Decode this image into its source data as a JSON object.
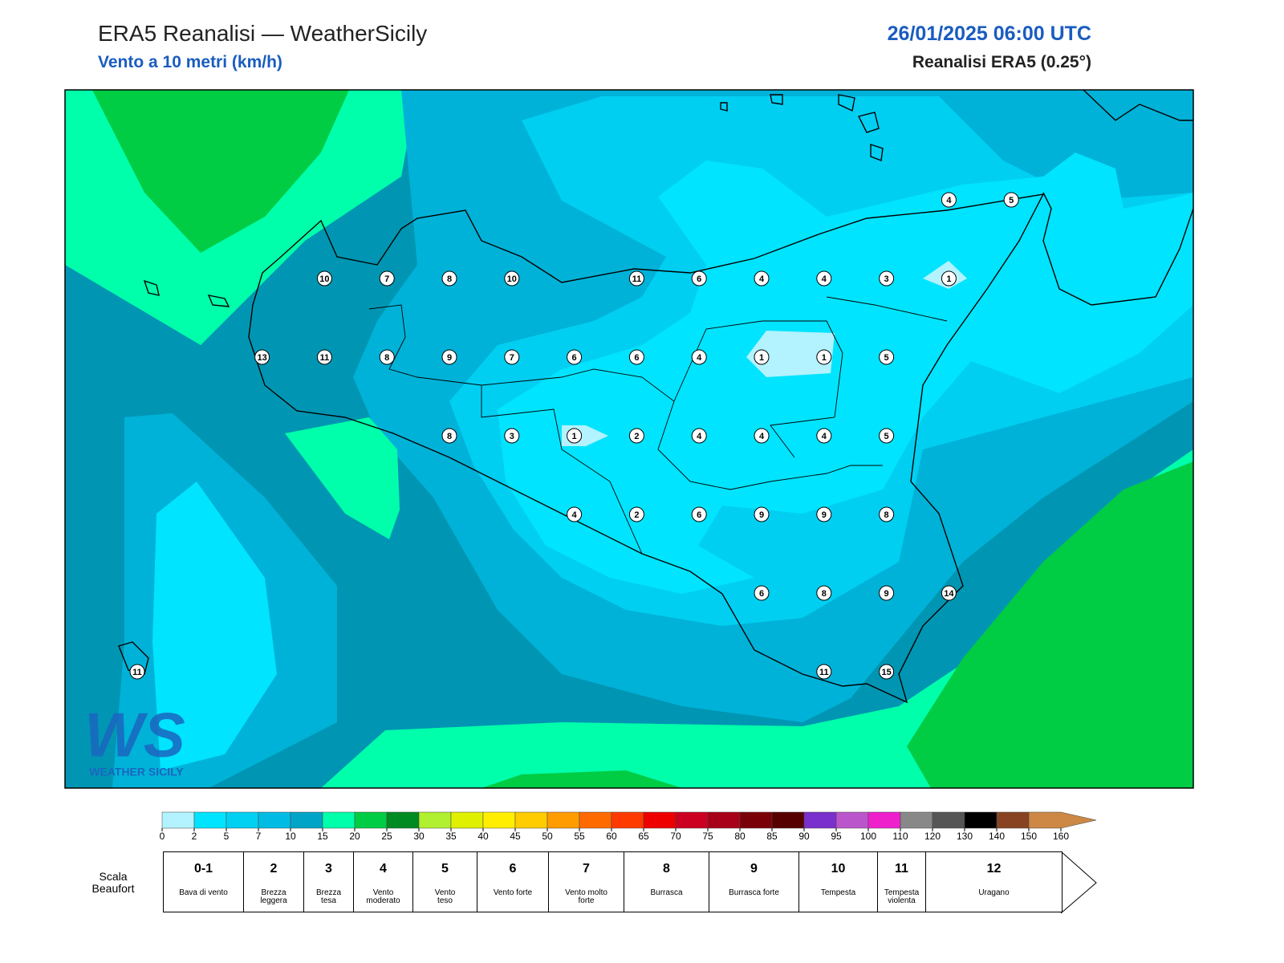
{
  "header": {
    "title": "ERA5 Reanalisi — WeatherSicily",
    "subtitle": "Vento a 10 metri (km/h)",
    "datetime": "26/01/2025 06:00 UTC",
    "source": "Reanalisi ERA5 (0.25°)"
  },
  "map": {
    "stations": [
      [
        null,
        null,
        null,
        null,
        null,
        null,
        null,
        null,
        null,
        null,
        null,
        null,
        null,
        4,
        5
      ],
      [
        null,
        null,
        null,
        10,
        7,
        8,
        10,
        null,
        11,
        6,
        4,
        4,
        3,
        1,
        null
      ],
      [
        null,
        null,
        13,
        11,
        8,
        9,
        7,
        6,
        6,
        4,
        1,
        1,
        5,
        null,
        null
      ],
      [
        null,
        null,
        null,
        null,
        null,
        8,
        3,
        1,
        2,
        4,
        4,
        4,
        5,
        null,
        null
      ],
      [
        null,
        null,
        null,
        null,
        null,
        null,
        null,
        4,
        2,
        6,
        9,
        9,
        8,
        null,
        null
      ],
      [
        null,
        null,
        null,
        null,
        null,
        null,
        null,
        null,
        null,
        null,
        6,
        8,
        9,
        14,
        null
      ],
      [
        11,
        null,
        null,
        null,
        null,
        null,
        null,
        null,
        null,
        null,
        null,
        11,
        15,
        null,
        null
      ]
    ]
  },
  "logo": {
    "mark": "WS",
    "text": "WEATHER SICILY"
  },
  "colorbar": {
    "ticks": [
      0,
      2,
      5,
      7,
      10,
      15,
      20,
      25,
      30,
      35,
      40,
      45,
      50,
      55,
      60,
      65,
      70,
      75,
      80,
      85,
      90,
      95,
      100,
      110,
      120,
      130,
      140,
      150,
      160
    ],
    "colors": [
      "#b3f2ff",
      "#00e4ff",
      "#00d0f2",
      "#00bce4",
      "#00a4c6",
      "#00ffaa",
      "#00cc44",
      "#008a22",
      "#b0f030",
      "#dff000",
      "#ffee00",
      "#ffcc00",
      "#ff9c00",
      "#ff6a00",
      "#ff3a00",
      "#ee0000",
      "#cc0020",
      "#a80018",
      "#7a0008",
      "#560000",
      "#7a30cc",
      "#bb55cc",
      "#ee20cc",
      "#888888",
      "#555555",
      "#000000",
      "#884422",
      "#cc8844"
    ]
  },
  "beaufort": {
    "label": "Scala Beaufort",
    "levels": [
      {
        "force": "0-1",
        "desc": "Bava di vento"
      },
      {
        "force": "2",
        "desc": "Brezza leggera"
      },
      {
        "force": "3",
        "desc": "Brezza tesa"
      },
      {
        "force": "4",
        "desc": "Vento moderato"
      },
      {
        "force": "5",
        "desc": "Vento teso"
      },
      {
        "force": "6",
        "desc": "Vento forte"
      },
      {
        "force": "7",
        "desc": "Vento molto forte"
      },
      {
        "force": "8",
        "desc": "Burrasca"
      },
      {
        "force": "9",
        "desc": "Burrasca forte"
      },
      {
        "force": "10",
        "desc": "Tempesta"
      },
      {
        "force": "11",
        "desc": "Tempesta violenta"
      },
      {
        "force": "12",
        "desc": "Uragano"
      }
    ]
  }
}
